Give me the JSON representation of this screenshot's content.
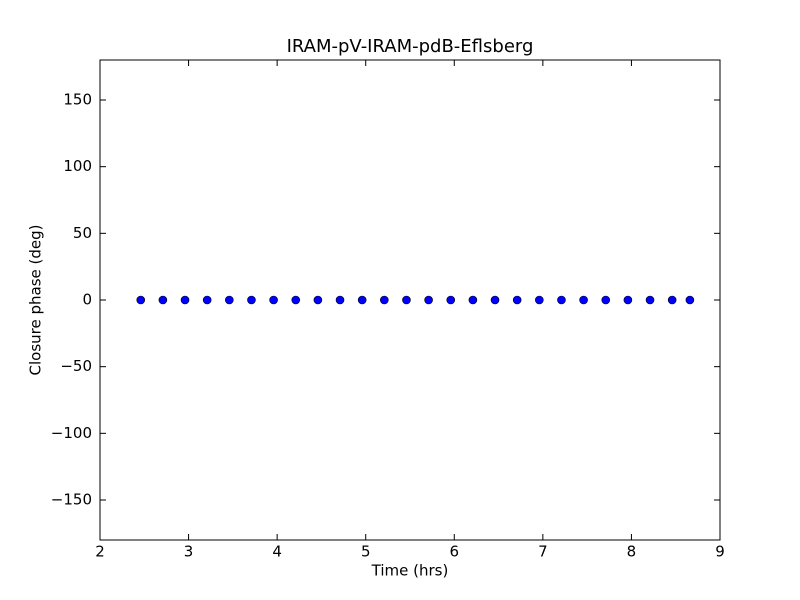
{
  "chart_data": {
    "type": "scatter",
    "title": "IRAM-pV-IRAM-pdB-Eflsberg",
    "xlabel": "Time (hrs)",
    "ylabel": "Closure phase (deg)",
    "x": [
      2.46,
      2.71,
      2.96,
      3.21,
      3.46,
      3.71,
      3.96,
      4.21,
      4.46,
      4.71,
      4.96,
      5.21,
      5.46,
      5.71,
      5.96,
      6.21,
      6.46,
      6.71,
      6.96,
      7.21,
      7.46,
      7.71,
      7.96,
      8.21,
      8.46,
      8.66
    ],
    "values": [
      0,
      0,
      0,
      0,
      0,
      0,
      0,
      0,
      0,
      0,
      0,
      0,
      0,
      0,
      0,
      0,
      0,
      0,
      0,
      0,
      0,
      0,
      0,
      0,
      0,
      0
    ],
    "color": "#0000ff",
    "xlim": [
      2,
      9
    ],
    "xticks": [
      2,
      3,
      4,
      5,
      6,
      7,
      8,
      9
    ],
    "ylim": [
      -180,
      180
    ],
    "yticks": [
      {
        "value": -150,
        "label": "−150"
      },
      {
        "value": -100,
        "label": "−100"
      },
      {
        "value": -50,
        "label": "−50"
      },
      0,
      50,
      100,
      150
    ],
    "grid": false
  }
}
